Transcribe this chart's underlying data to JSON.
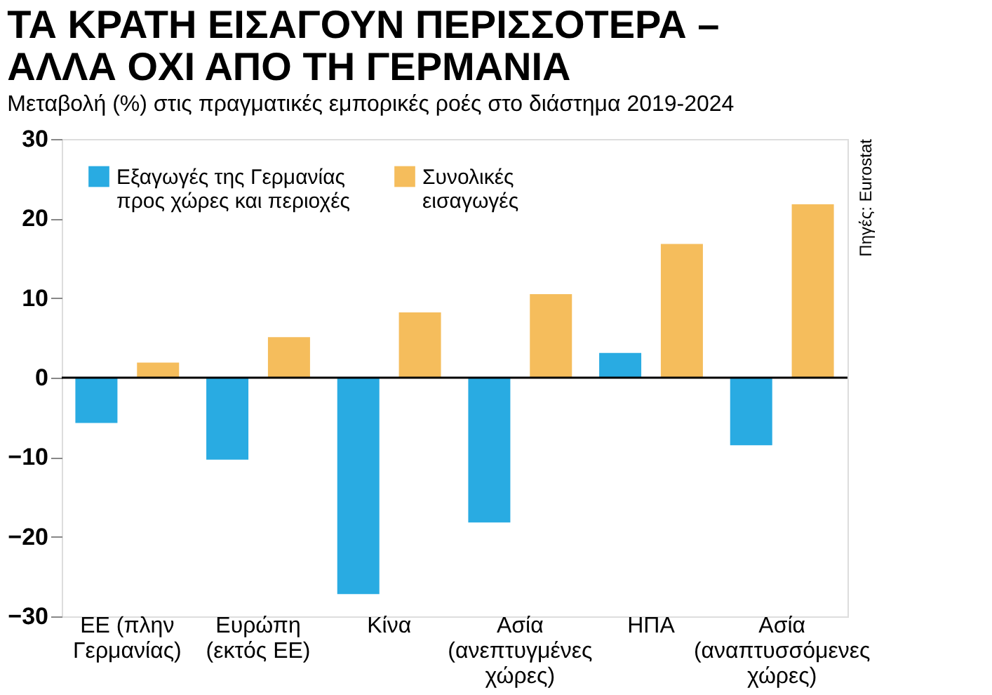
{
  "chart_data": {
    "type": "bar",
    "title": "ΤΑ ΚΡΑΤΗ ΕΙΣΑΓΟΥΝ ΠΕΡΙΣΣΟΤΕΡΑ –\nΑΛΛΑ ΟΧΙ ΑΠΟ ΤΗ ΓΕΡΜΑΝΙΑ",
    "subtitle": "Μεταβολή (%) στις πραγματικές εμπορικές ροές στο διάστημα 2019-2024",
    "categories": [
      "ΕΕ (πλην\nΓερμανίας)",
      "Ευρώπη\n(εκτός ΕΕ)",
      "Κίνα",
      "Ασία\n(ανεπτυγμένες\nχώρες)",
      "ΗΠΑ",
      "Ασία\n(αναπτυσσόμενες\nχώρες)"
    ],
    "series": [
      {
        "name": "Εξαγωγές της Γερμανίας\nπρος χώρες και περιοχές",
        "color": "#29abe2",
        "values": [
          -5.7,
          -10.3,
          -27.2,
          -18.2,
          3.1,
          -8.5
        ]
      },
      {
        "name": "Συνολικές\nεισαγωγές",
        "color": "#f5bd5c",
        "values": [
          1.9,
          5.1,
          8.2,
          10.5,
          16.8,
          21.8
        ]
      }
    ],
    "ylim": [
      -30,
      30
    ],
    "yticks": [
      -30,
      -20,
      -10,
      0,
      10,
      20,
      30
    ],
    "grid": false,
    "legend": "top left",
    "ref_lines": [
      {
        "axis": "y",
        "value": 0
      }
    ],
    "annotations": [
      "Πηγές: Eurostat"
    ]
  }
}
